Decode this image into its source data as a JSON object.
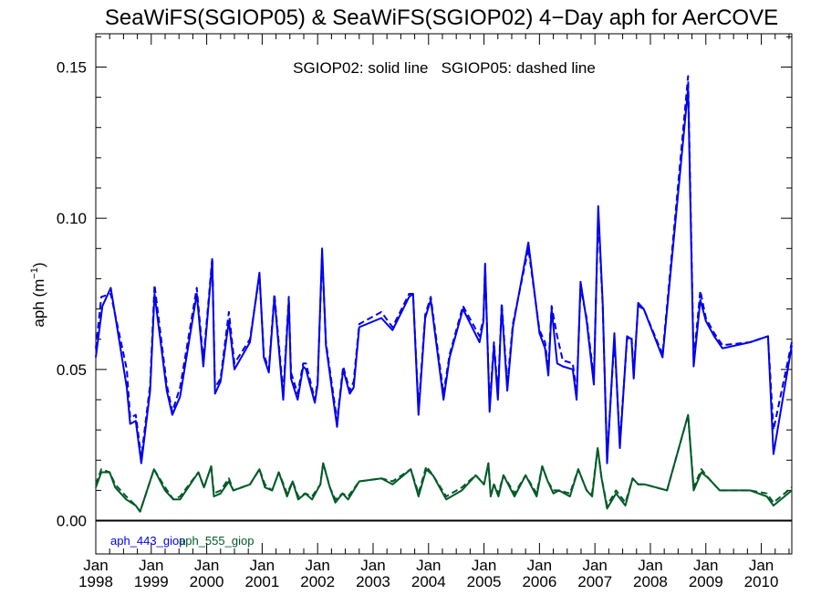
{
  "chart_data": {
    "type": "line",
    "title": "SeaWiFS(SGIOP05) & SeaWiFS(SGIOP02) 4−Day aph for AerCOVE",
    "annotation": "SGIOP02: solid line   SGIOP05: dashed line",
    "ylabel": "aph",
    "ylabel_unit": "(m",
    "ylabel_exp": "−1",
    "ylabel_close": ")",
    "xlim": [
      1998.0,
      2010.55
    ],
    "ylim": [
      -0.011,
      0.161
    ],
    "yticks": [
      {
        "value": 0.0,
        "label": "0.00"
      },
      {
        "value": 0.05,
        "label": "0.05"
      },
      {
        "value": 0.1,
        "label": "0.10"
      },
      {
        "value": 0.15,
        "label": "0.15"
      }
    ],
    "xticks": [
      {
        "value": 1998,
        "month": "Jan",
        "year": "1998"
      },
      {
        "value": 1999,
        "month": "Jan",
        "year": "1999"
      },
      {
        "value": 2000,
        "month": "Jan",
        "year": "2000"
      },
      {
        "value": 2001,
        "month": "Jan",
        "year": "2001"
      },
      {
        "value": 2002,
        "month": "Jan",
        "year": "2002"
      },
      {
        "value": 2003,
        "month": "Jan",
        "year": "2003"
      },
      {
        "value": 2004,
        "month": "Jan",
        "year": "2004"
      },
      {
        "value": 2005,
        "month": "Jan",
        "year": "2005"
      },
      {
        "value": 2006,
        "month": "Jan",
        "year": "2006"
      },
      {
        "value": 2007,
        "month": "Jan",
        "year": "2007"
      },
      {
        "value": 2008,
        "month": "Jan",
        "year": "2008"
      },
      {
        "value": 2009,
        "month": "Jan",
        "year": "2009"
      },
      {
        "value": 2010,
        "month": "Jan",
        "year": "2010"
      }
    ],
    "zero_line": true,
    "series": [
      {
        "name": "aph_443_giop",
        "model": "SGIOP02",
        "style": "solid",
        "color": "#0000ee",
        "x": [
          1998.0,
          1998.12,
          1998.27,
          1998.56,
          1998.62,
          1998.72,
          1998.82,
          1998.98,
          1999.06,
          1999.28,
          1999.38,
          1999.52,
          1999.82,
          1999.94,
          2000.1,
          2000.15,
          2000.25,
          2000.4,
          2000.5,
          2000.78,
          2000.95,
          2001.03,
          2001.12,
          2001.22,
          2001.38,
          2001.48,
          2001.52,
          2001.64,
          2001.74,
          2001.79,
          2001.95,
          2002.0,
          2002.08,
          2002.15,
          2002.35,
          2002.38,
          2002.46,
          2002.58,
          2002.65,
          2002.75,
          2003.15,
          2003.35,
          2003.65,
          2003.72,
          2003.82,
          2003.94,
          2004.04,
          2004.27,
          2004.38,
          2004.62,
          2004.92,
          2004.99,
          2005.02,
          2005.1,
          2005.18,
          2005.25,
          2005.32,
          2005.42,
          2005.52,
          2005.8,
          2006.0,
          2006.1,
          2006.16,
          2006.22,
          2006.32,
          2006.42,
          2006.6,
          2006.67,
          2006.74,
          2006.85,
          2006.98,
          2007.06,
          2007.14,
          2007.22,
          2007.35,
          2007.45,
          2007.58,
          2007.66,
          2007.7,
          2007.78,
          2007.88,
          2008.22,
          2008.68,
          2008.78,
          2008.9,
          2009.0,
          2009.15,
          2009.3,
          2009.8,
          2010.12,
          2010.22,
          2010.55
        ],
        "y": [
          0.054,
          0.071,
          0.077,
          0.044,
          0.032,
          0.033,
          0.019,
          0.043,
          0.075,
          0.043,
          0.035,
          0.041,
          0.075,
          0.051,
          0.086,
          0.042,
          0.046,
          0.066,
          0.05,
          0.059,
          0.082,
          0.054,
          0.049,
          0.074,
          0.04,
          0.073,
          0.047,
          0.04,
          0.051,
          0.05,
          0.039,
          0.045,
          0.09,
          0.058,
          0.031,
          0.037,
          0.05,
          0.042,
          0.044,
          0.064,
          0.067,
          0.063,
          0.074,
          0.075,
          0.035,
          0.067,
          0.073,
          0.04,
          0.054,
          0.07,
          0.059,
          0.066,
          0.085,
          0.036,
          0.058,
          0.04,
          0.071,
          0.043,
          0.064,
          0.092,
          0.062,
          0.057,
          0.048,
          0.07,
          0.052,
          0.051,
          0.05,
          0.04,
          0.079,
          0.066,
          0.045,
          0.104,
          0.072,
          0.019,
          0.062,
          0.024,
          0.061,
          0.06,
          0.047,
          0.072,
          0.07,
          0.054,
          0.143,
          0.051,
          0.073,
          0.066,
          0.061,
          0.057,
          0.059,
          0.061,
          0.022,
          0.058
        ]
      },
      {
        "name": "aph_443_giop",
        "model": "SGIOP05",
        "style": "dashed",
        "color": "#0000ee",
        "x": [
          1998.0,
          1998.1,
          1998.27,
          1998.56,
          1998.62,
          1998.72,
          1998.82,
          1998.98,
          1999.06,
          1999.28,
          1999.38,
          1999.52,
          1999.82,
          1999.94,
          2000.1,
          2000.15,
          2000.25,
          2000.4,
          2000.5,
          2000.78,
          2000.95,
          2001.03,
          2001.12,
          2001.22,
          2001.38,
          2001.48,
          2001.52,
          2001.64,
          2001.74,
          2001.79,
          2001.95,
          2002.0,
          2002.08,
          2002.15,
          2002.35,
          2002.38,
          2002.46,
          2002.58,
          2002.65,
          2002.75,
          2003.15,
          2003.35,
          2003.65,
          2003.72,
          2003.82,
          2003.94,
          2004.04,
          2004.27,
          2004.38,
          2004.62,
          2004.92,
          2004.99,
          2005.02,
          2005.1,
          2005.18,
          2005.25,
          2005.32,
          2005.42,
          2005.52,
          2005.8,
          2006.0,
          2006.1,
          2006.16,
          2006.22,
          2006.32,
          2006.42,
          2006.6,
          2006.67,
          2006.74,
          2006.85,
          2006.98,
          2007.06,
          2007.14,
          2007.22,
          2007.35,
          2007.45,
          2007.58,
          2007.66,
          2007.7,
          2007.78,
          2007.88,
          2008.22,
          2008.68,
          2008.78,
          2008.9,
          2009.0,
          2009.15,
          2009.3,
          2009.8,
          2010.12,
          2010.22,
          2010.55
        ],
        "y": [
          0.057,
          0.074,
          0.075,
          0.05,
          0.034,
          0.035,
          0.021,
          0.045,
          0.078,
          0.045,
          0.036,
          0.044,
          0.077,
          0.053,
          0.087,
          0.044,
          0.047,
          0.069,
          0.052,
          0.06,
          0.081,
          0.055,
          0.05,
          0.075,
          0.042,
          0.074,
          0.049,
          0.042,
          0.052,
          0.052,
          0.04,
          0.046,
          0.088,
          0.059,
          0.033,
          0.038,
          0.051,
          0.043,
          0.046,
          0.065,
          0.069,
          0.064,
          0.075,
          0.075,
          0.037,
          0.068,
          0.074,
          0.042,
          0.055,
          0.071,
          0.061,
          0.067,
          0.084,
          0.038,
          0.059,
          0.042,
          0.072,
          0.045,
          0.065,
          0.09,
          0.063,
          0.059,
          0.05,
          0.071,
          0.061,
          0.053,
          0.052,
          0.042,
          0.077,
          0.067,
          0.047,
          0.101,
          0.071,
          0.021,
          0.06,
          0.026,
          0.06,
          0.061,
          0.049,
          0.071,
          0.07,
          0.055,
          0.147,
          0.053,
          0.076,
          0.067,
          0.062,
          0.058,
          0.059,
          0.061,
          0.03,
          0.059
        ]
      },
      {
        "name": "aph_555_giop",
        "model": "SGIOP02",
        "style": "solid",
        "color": "#005a28",
        "x": [
          1998.0,
          1998.1,
          1998.25,
          1998.35,
          1998.55,
          1998.72,
          1998.8,
          1999.05,
          1999.25,
          1999.4,
          1999.52,
          1999.85,
          1999.95,
          2000.08,
          2000.13,
          2000.25,
          2000.4,
          2000.48,
          2000.78,
          2000.95,
          2001.05,
          2001.18,
          2001.3,
          2001.45,
          2001.55,
          2001.65,
          2001.78,
          2001.9,
          2002.05,
          2002.1,
          2002.22,
          2002.32,
          2002.45,
          2002.55,
          2002.75,
          2003.15,
          2003.35,
          2003.68,
          2003.82,
          2003.96,
          2004.08,
          2004.32,
          2004.6,
          2004.85,
          2005.0,
          2005.08,
          2005.12,
          2005.18,
          2005.26,
          2005.35,
          2005.55,
          2005.75,
          2005.95,
          2006.05,
          2006.15,
          2006.25,
          2006.35,
          2006.55,
          2006.7,
          2006.85,
          2006.95,
          2007.05,
          2007.12,
          2007.22,
          2007.38,
          2007.55,
          2007.68,
          2007.78,
          2007.9,
          2008.3,
          2008.68,
          2008.78,
          2008.92,
          2009.05,
          2009.25,
          2009.8,
          2010.1,
          2010.22,
          2010.55
        ],
        "y": [
          0.011,
          0.016,
          0.016,
          0.011,
          0.007,
          0.005,
          0.003,
          0.017,
          0.01,
          0.007,
          0.007,
          0.016,
          0.011,
          0.018,
          0.008,
          0.009,
          0.013,
          0.01,
          0.012,
          0.017,
          0.011,
          0.01,
          0.016,
          0.008,
          0.013,
          0.007,
          0.009,
          0.007,
          0.012,
          0.019,
          0.011,
          0.006,
          0.009,
          0.007,
          0.013,
          0.014,
          0.012,
          0.017,
          0.008,
          0.017,
          0.015,
          0.007,
          0.01,
          0.015,
          0.012,
          0.019,
          0.008,
          0.012,
          0.008,
          0.015,
          0.008,
          0.015,
          0.008,
          0.018,
          0.013,
          0.009,
          0.01,
          0.008,
          0.017,
          0.01,
          0.008,
          0.024,
          0.014,
          0.004,
          0.009,
          0.005,
          0.014,
          0.012,
          0.012,
          0.01,
          0.035,
          0.01,
          0.016,
          0.014,
          0.01,
          0.01,
          0.008,
          0.005,
          0.01
        ]
      },
      {
        "name": "aph_555_giop",
        "model": "SGIOP05",
        "style": "dashed",
        "color": "#005a28",
        "x": [
          1998.0,
          1998.1,
          1998.25,
          1998.35,
          1998.55,
          1998.72,
          1998.8,
          1999.05,
          1999.25,
          1999.4,
          1999.52,
          1999.85,
          1999.95,
          2000.08,
          2000.13,
          2000.25,
          2000.4,
          2000.48,
          2000.78,
          2000.95,
          2001.05,
          2001.18,
          2001.3,
          2001.45,
          2001.55,
          2001.65,
          2001.78,
          2001.9,
          2002.05,
          2002.1,
          2002.22,
          2002.32,
          2002.45,
          2002.55,
          2002.75,
          2003.15,
          2003.35,
          2003.68,
          2003.82,
          2003.96,
          2004.08,
          2004.32,
          2004.6,
          2004.85,
          2005.0,
          2005.08,
          2005.12,
          2005.18,
          2005.26,
          2005.35,
          2005.55,
          2005.75,
          2005.95,
          2006.05,
          2006.15,
          2006.25,
          2006.35,
          2006.55,
          2006.7,
          2006.85,
          2006.95,
          2007.05,
          2007.12,
          2007.22,
          2007.38,
          2007.55,
          2007.68,
          2007.78,
          2007.9,
          2008.3,
          2008.68,
          2008.78,
          2008.92,
          2009.05,
          2009.25,
          2009.8,
          2010.1,
          2010.22,
          2010.55
        ],
        "y": [
          0.012,
          0.017,
          0.016,
          0.012,
          0.008,
          0.005,
          0.003,
          0.017,
          0.011,
          0.007,
          0.008,
          0.016,
          0.011,
          0.018,
          0.009,
          0.01,
          0.014,
          0.01,
          0.012,
          0.017,
          0.012,
          0.01,
          0.016,
          0.009,
          0.013,
          0.008,
          0.009,
          0.008,
          0.012,
          0.019,
          0.011,
          0.007,
          0.009,
          0.008,
          0.013,
          0.014,
          0.013,
          0.017,
          0.009,
          0.018,
          0.015,
          0.008,
          0.011,
          0.015,
          0.012,
          0.019,
          0.009,
          0.012,
          0.009,
          0.015,
          0.009,
          0.015,
          0.009,
          0.018,
          0.013,
          0.01,
          0.01,
          0.009,
          0.017,
          0.01,
          0.009,
          0.024,
          0.014,
          0.005,
          0.01,
          0.006,
          0.014,
          0.012,
          0.012,
          0.01,
          0.035,
          0.011,
          0.017,
          0.014,
          0.01,
          0.01,
          0.009,
          0.006,
          0.011
        ]
      }
    ],
    "legend": [
      {
        "label": "aph_443_giop",
        "color": "#0000ee"
      },
      {
        "label": "aph_555_giop",
        "color": "#005a28"
      }
    ]
  }
}
